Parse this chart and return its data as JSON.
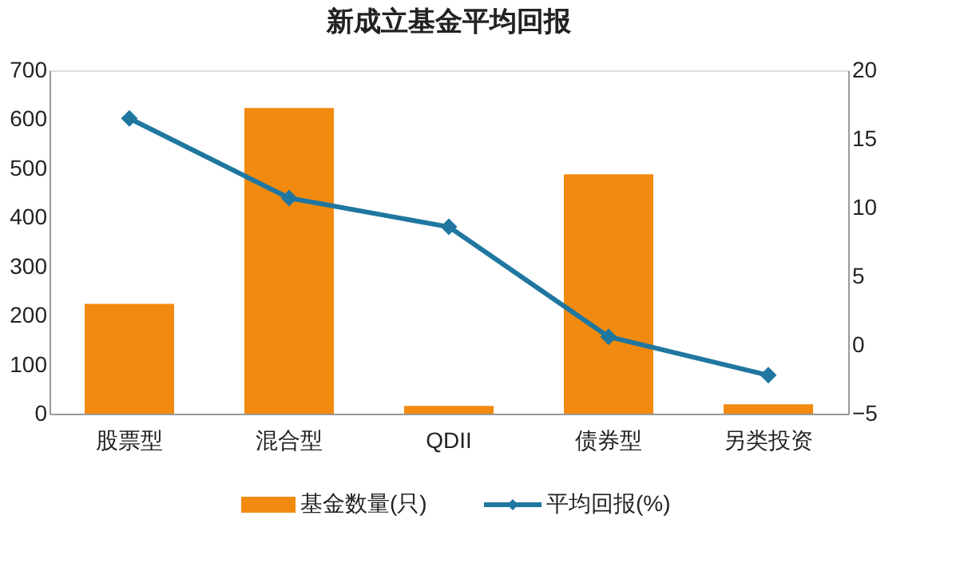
{
  "chart_data": {
    "type": "bar",
    "title": "新成立基金平均回报",
    "categories": [
      "股票型",
      "混合型",
      "QDII",
      "债券型",
      "另类投资"
    ],
    "series": [
      {
        "name": "基金数量(只)",
        "color": "#f28a0f",
        "values": [
          224,
          623,
          16,
          488,
          19
        ]
      },
      {
        "name": "平均回报(%)",
        "type": "line",
        "axis": "y2",
        "color": "#1f77a0",
        "marker": "diamond",
        "line_style": "solid",
        "values": [
          16.5,
          10.7,
          8.6,
          0.6,
          -2.2
        ]
      }
    ],
    "ylim": [
      0,
      700
    ],
    "yticks": [
      0,
      100,
      200,
      300,
      400,
      500,
      600,
      700
    ],
    "y2lim": [
      -5,
      20
    ],
    "y2ticks": [
      -5,
      0,
      5,
      10,
      15,
      20
    ],
    "grid": false,
    "legend": "bottom"
  }
}
